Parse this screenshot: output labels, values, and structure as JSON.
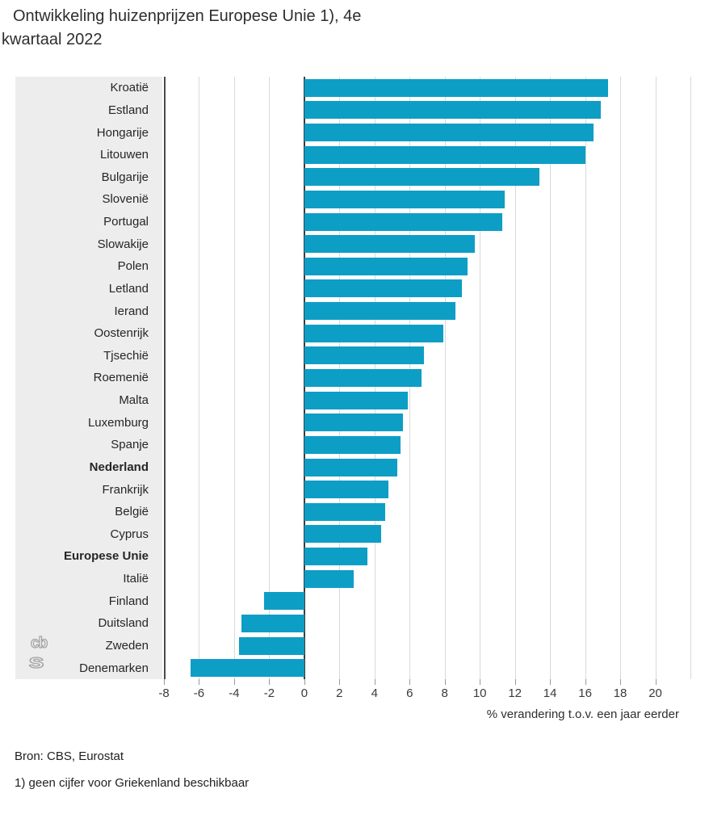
{
  "title": {
    "line1": "Ontwikkeling huizenprijzen Europese Unie 1), 4e",
    "line2": "kwartaal 2022"
  },
  "footer": {
    "source": "Bron: CBS, Eurostat",
    "note": "1) geen cijfer voor Griekenland beschikbaar"
  },
  "logo": {
    "top": "cb",
    "bottom": "s"
  },
  "colors": {
    "bar": "#0d9ec6",
    "label_panel": "#ededed",
    "gridline": "#d9d9d9",
    "zero_line": "#3d3d3d"
  },
  "chart_data": {
    "type": "bar",
    "orientation": "horizontal",
    "title": "Ontwikkeling huizenprijzen Europese Unie 1), 4e kwartaal 2022",
    "xlabel": "% verandering t.o.v. een jaar eerder",
    "ylabel": "",
    "xlim": [
      -8,
      22
    ],
    "grid": true,
    "xticks": [
      -8,
      -6,
      -4,
      -2,
      0,
      2,
      4,
      6,
      8,
      10,
      12,
      14,
      16,
      18,
      20
    ],
    "categories": [
      "Kroatië",
      "Estland",
      "Hongarije",
      "Litouwen",
      "Bulgarije",
      "Slovenië",
      "Portugal",
      "Slowakije",
      "Polen",
      "Letland",
      "Ierand",
      "Oostenrijk",
      "Tjsechië",
      "Roemenië",
      "Malta",
      "Luxemburg",
      "Spanje",
      "Nederland",
      "Frankrijk",
      "België",
      "Cyprus",
      "Europese Unie",
      "Italië",
      "Finland",
      "Duitsland",
      "Zweden",
      "Denemarken"
    ],
    "values": [
      17.3,
      16.9,
      16.5,
      16.0,
      13.4,
      11.4,
      11.3,
      9.7,
      9.3,
      9.0,
      8.6,
      7.9,
      6.8,
      6.7,
      5.9,
      5.6,
      5.5,
      5.3,
      4.8,
      4.6,
      4.4,
      3.6,
      2.8,
      -2.3,
      -3.6,
      -3.7,
      -6.5
    ],
    "bold_categories": [
      "Nederland",
      "Europese Unie"
    ]
  }
}
